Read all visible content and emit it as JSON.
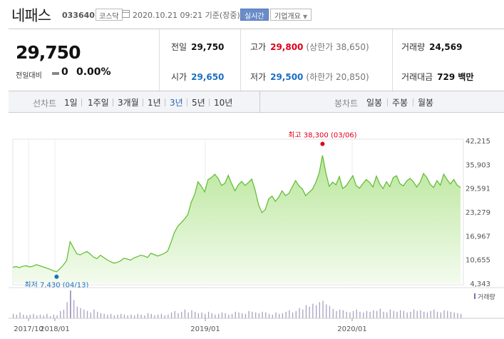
{
  "header": {
    "stock_name": "네패스",
    "stock_code": "033640",
    "market_badge": "코스닥",
    "datetime": "2020.10.21 09:21 기준(장중)",
    "realtime_button": "실시간",
    "company_info_button": "기업개요"
  },
  "summary": {
    "current_price": "29,750",
    "change_label": "전일대비",
    "change_value": "0",
    "change_percent": "0.00%",
    "prev_close": {
      "label": "전일",
      "value": "29,750"
    },
    "open": {
      "label": "시가",
      "value": "29,650"
    },
    "high": {
      "label": "고가",
      "value": "29,800",
      "limit_text": "(상한가 38,650)"
    },
    "low": {
      "label": "저가",
      "value": "29,500",
      "limit_text": "(하한가 20,850)"
    },
    "volume": {
      "label": "거래량",
      "value": "24,569"
    },
    "amount": {
      "label": "거래대금",
      "value": "729 백만"
    }
  },
  "period_bar": {
    "line_label": "선차트",
    "line_periods": [
      "1일",
      "1주일",
      "3개월",
      "1년",
      "3년",
      "5년",
      "10년"
    ],
    "selected_line_period": "3년",
    "candle_label": "봉차트",
    "candle_periods": [
      "일봉",
      "주봉",
      "월봉"
    ]
  },
  "colors": {
    "up": "#e0001b",
    "down": "#1d6fbf",
    "line": "#5dbb2e",
    "fill": "#dcf3c9",
    "volume": "#a9a0c0",
    "volume_peak": "#7d6fa6"
  },
  "chart_data": {
    "type": "area",
    "y_ticks": [
      "42,215",
      "35,903",
      "29,591",
      "23,279",
      "16,967",
      "10,655",
      "4,343"
    ],
    "ylim": [
      4343,
      42215
    ],
    "x_tick_labels": [
      "2017/10",
      "2018/01",
      "2019/01",
      "2020/01"
    ],
    "volume_legend": "거래량",
    "high_annotation": "최고 38,300 (03/06)",
    "low_annotation": "최저 7,430 (04/13)",
    "high_value": 38300,
    "low_value": 7430,
    "price_series": [
      8600,
      8800,
      8500,
      8900,
      9000,
      8700,
      8900,
      9300,
      9000,
      8700,
      8400,
      8100,
      7700,
      7430,
      8200,
      9200,
      10400,
      15400,
      13800,
      12200,
      11900,
      12400,
      12800,
      12100,
      11300,
      10900,
      11800,
      11200,
      10600,
      10100,
      9700,
      9900,
      10300,
      11000,
      10800,
      10500,
      11100,
      11400,
      11800,
      11600,
      11200,
      12300,
      12000,
      11600,
      11900,
      12300,
      12900,
      15200,
      17800,
      19500,
      20400,
      21400,
      22600,
      25900,
      27900,
      31300,
      30100,
      28600,
      31900,
      32400,
      33300,
      32200,
      30300,
      30900,
      33000,
      30800,
      28900,
      30500,
      31400,
      30300,
      31100,
      32000,
      29000,
      25200,
      23100,
      23900,
      26700,
      27500,
      26100,
      27200,
      28900,
      27600,
      28200,
      29900,
      31600,
      30200,
      29400,
      27600,
      28500,
      29300,
      31100,
      33600,
      38300,
      33700,
      30100,
      31200,
      30500,
      32700,
      29500,
      30200,
      31600,
      32900,
      30300,
      29600,
      30800,
      31900,
      31100,
      29900,
      32800,
      30700,
      29500,
      31300,
      30000,
      32400,
      32900,
      30800,
      30200,
      31500,
      32200,
      31300,
      29900,
      31200,
      33500,
      32400,
      30600,
      29800,
      31600,
      30400,
      33300,
      31900,
      30700,
      31900,
      30400,
      29750
    ],
    "volume_series": [
      6,
      5,
      8,
      5,
      4,
      5,
      6,
      4,
      5,
      4,
      6,
      3,
      5,
      4,
      10,
      12,
      22,
      38,
      25,
      16,
      14,
      12,
      10,
      8,
      12,
      9,
      7,
      6,
      5,
      6,
      4,
      5,
      6,
      5,
      4,
      5,
      4,
      6,
      5,
      4,
      7,
      6,
      4,
      5,
      6,
      4,
      5,
      8,
      10,
      7,
      9,
      12,
      8,
      11,
      9,
      7,
      8,
      6,
      9,
      7,
      5,
      6,
      8,
      7,
      5,
      6,
      9,
      8,
      7,
      6,
      10,
      9,
      8,
      7,
      9,
      8,
      6,
      5,
      8,
      6,
      7,
      9,
      11,
      8,
      10,
      14,
      12,
      18,
      16,
      20,
      18,
      22,
      24,
      19,
      17,
      13,
      10,
      12,
      11,
      9,
      8,
      10,
      12,
      9,
      8,
      10,
      9,
      11,
      10,
      13,
      9,
      8,
      12,
      10,
      9,
      11,
      10,
      8,
      9,
      12,
      10,
      11,
      9,
      8,
      10,
      12,
      9,
      8,
      11,
      10,
      9,
      8,
      7,
      6
    ]
  }
}
